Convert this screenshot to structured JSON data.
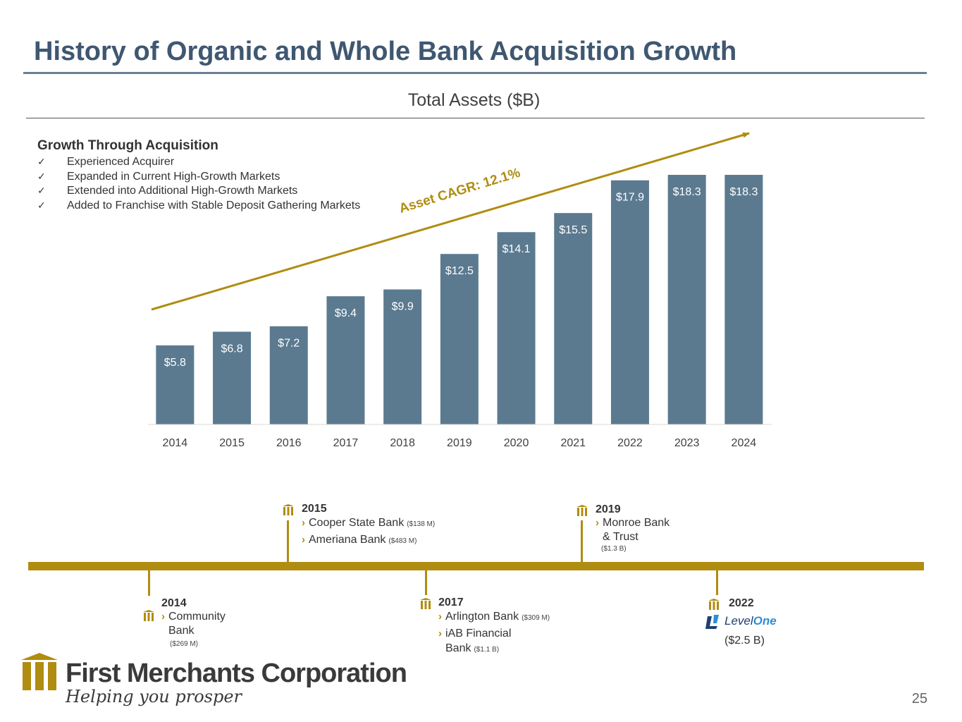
{
  "title": "History of Organic and Whole Bank Acquisition Growth",
  "growth": {
    "heading": "Growth Through Acquisition",
    "items": [
      "Experienced Acquirer",
      "Expanded in Current High-Growth Markets",
      "Extended into Additional High-Growth Markets",
      "Added to Franchise with Stable Deposit Gathering Markets"
    ]
  },
  "chart_data": {
    "type": "bar",
    "title": "Total Assets ($B)",
    "categories": [
      "2014",
      "2015",
      "2016",
      "2017",
      "2018",
      "2019",
      "2020",
      "2021",
      "2022",
      "2023",
      "2024"
    ],
    "values": [
      5.8,
      6.8,
      7.2,
      9.4,
      9.9,
      12.5,
      14.1,
      15.5,
      17.9,
      18.3,
      18.3
    ],
    "data_labels": [
      "$5.8",
      "$6.8",
      "$7.2",
      "$9.4",
      "$9.9",
      "$12.5",
      "$14.1",
      "$15.5",
      "$17.9",
      "$18.3",
      "$18.3"
    ],
    "annotation": "Asset CAGR: 12.1%",
    "ylim": [
      0,
      18.3
    ],
    "bar_color": "#5b7a90",
    "trend_color": "#b08c10",
    "grid": false
  },
  "timeline": {
    "color": "#b08c10",
    "events": [
      {
        "year": "2014",
        "lines": [
          {
            "name": "Community Bank",
            "amount": "($269 M)"
          }
        ]
      },
      {
        "year": "2015",
        "lines": [
          {
            "name": "Cooper State Bank",
            "amount": "($138 M)"
          },
          {
            "name": "Ameriana Bank",
            "amount": "($483 M)"
          }
        ]
      },
      {
        "year": "2017",
        "lines": [
          {
            "name": "Arlington Bank",
            "amount": "($309 M)"
          },
          {
            "name": "iAB Financial Bank",
            "amount": "($1.1 B)"
          }
        ]
      },
      {
        "year": "2019",
        "lines": [
          {
            "name": "Monroe Bank & Trust",
            "amount": "($1.3 B)"
          }
        ]
      },
      {
        "year": "2022",
        "logo_text": "LevelOne",
        "amount": "($2.5 B)"
      }
    ]
  },
  "footer": {
    "company": "First Merchants Corporation",
    "tagline": "Helping you prosper",
    "page": "25"
  }
}
